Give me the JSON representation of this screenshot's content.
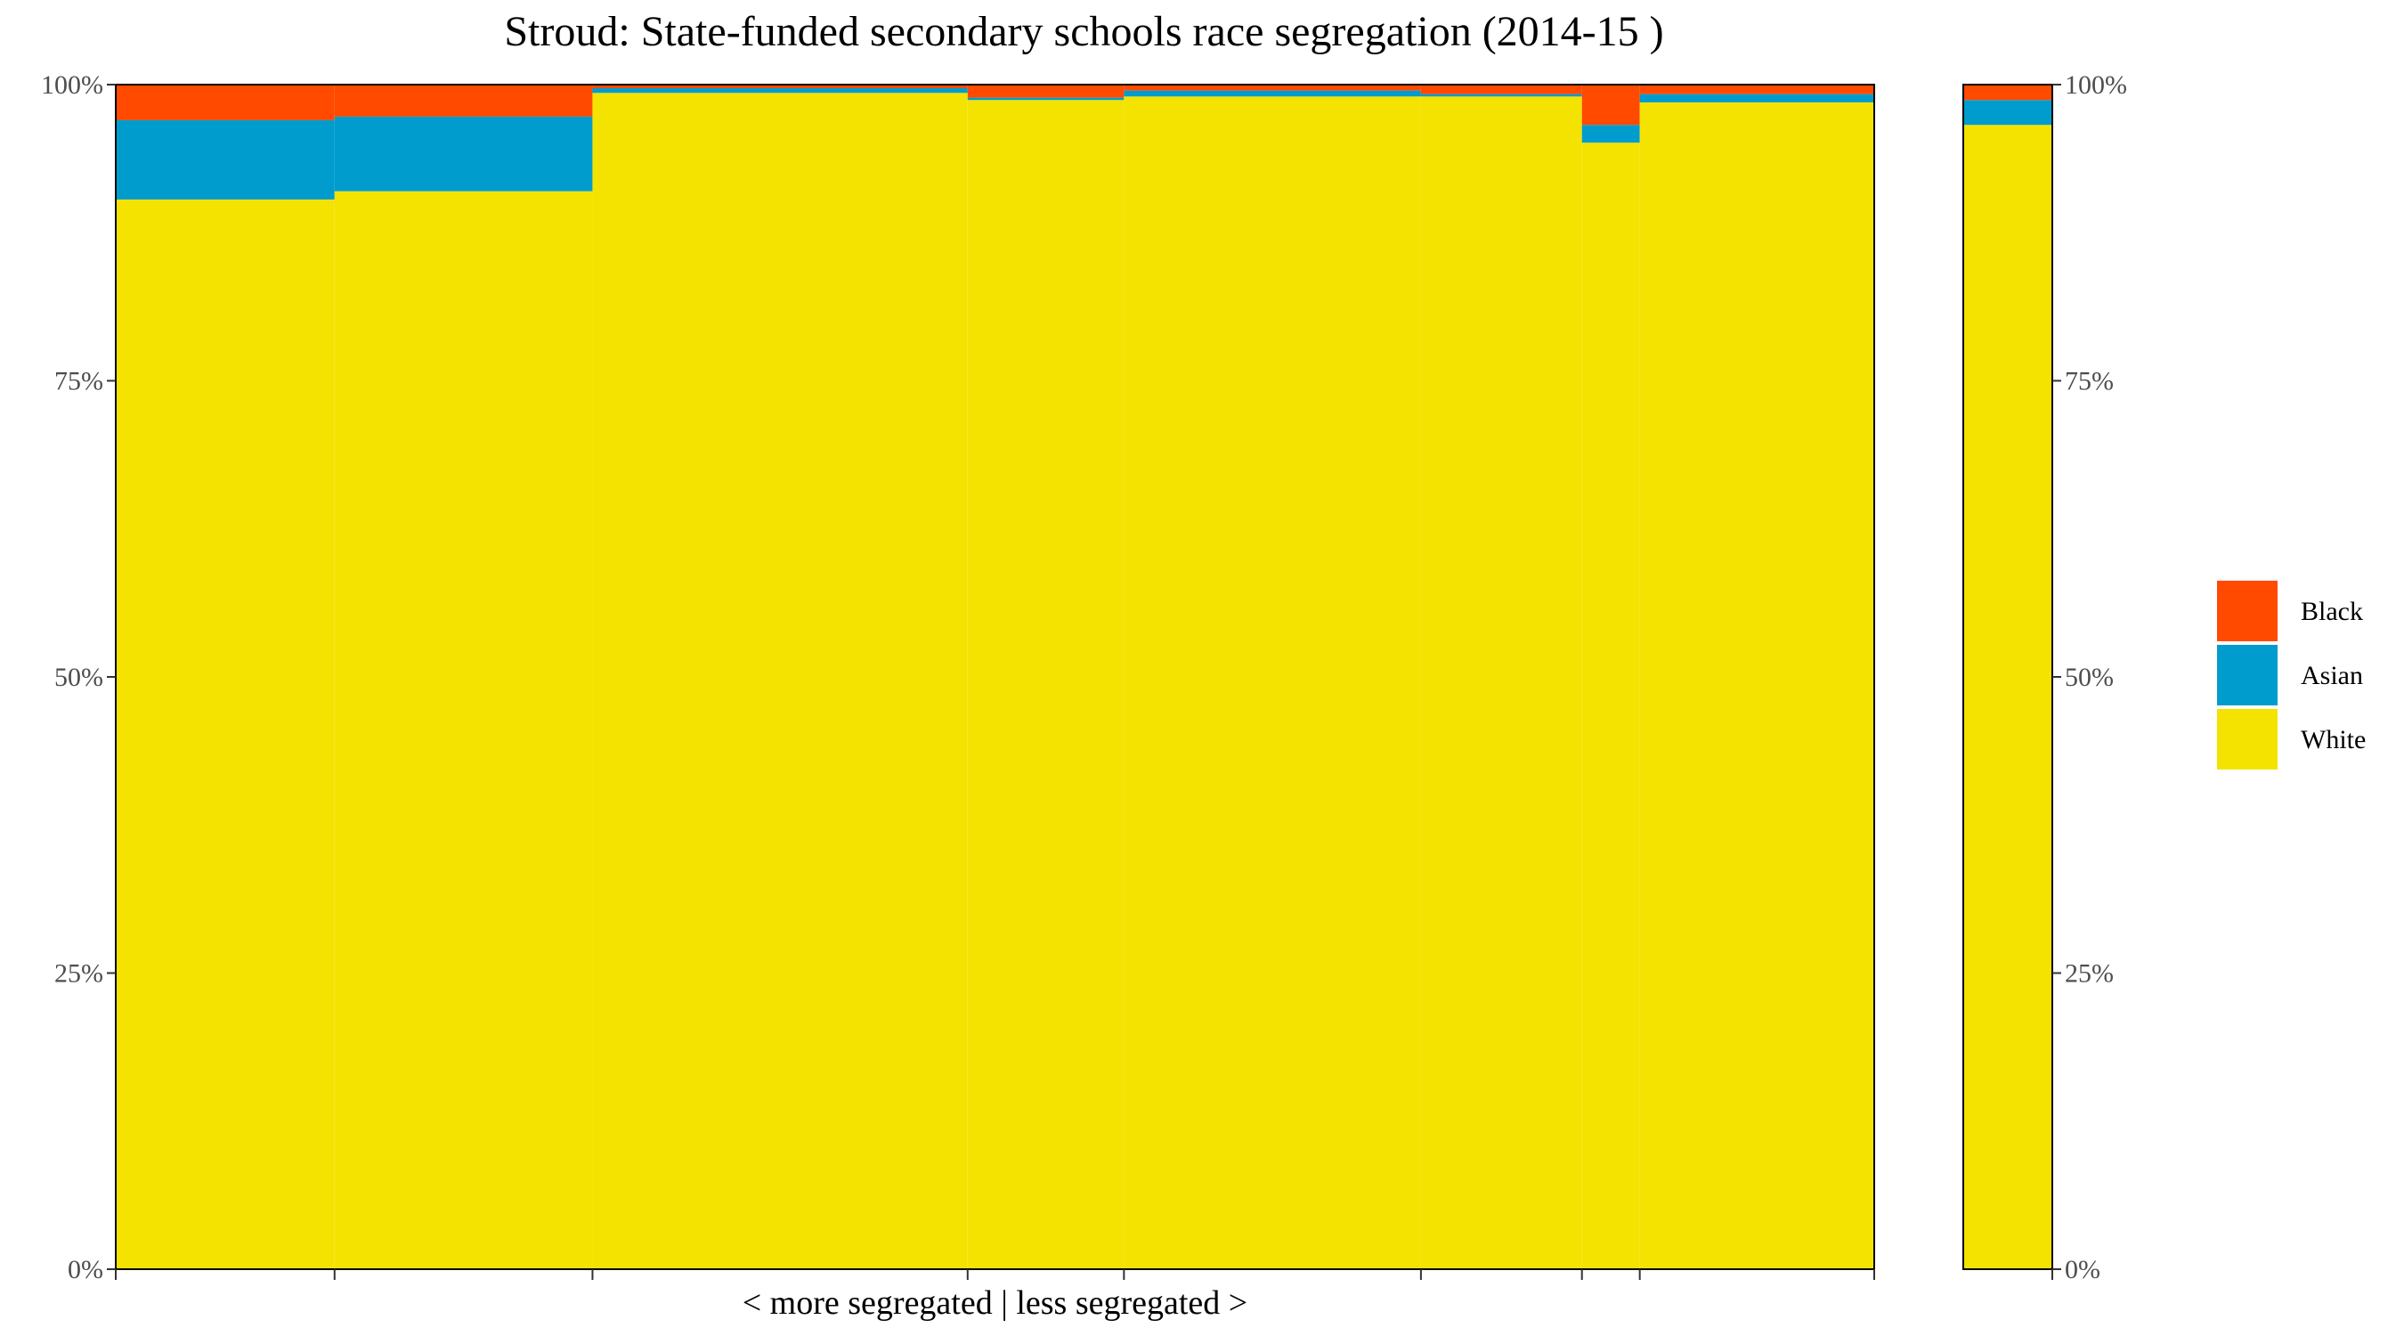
{
  "chart_data": {
    "type": "bar",
    "title": "Stroud: State-funded secondary schools race segregation (2014-15 )",
    "xlabel": "< more segregated | less segregated >",
    "ylabel": "",
    "ylim": [
      0,
      100
    ],
    "y_ticks": [
      "0%",
      "25%",
      "50%",
      "75%",
      "100%"
    ],
    "legend": {
      "placement": "right",
      "order": [
        "Black",
        "Asian",
        "White"
      ]
    },
    "grid": false,
    "series_colors": {
      "White": "#F4E300",
      "Asian": "#009CCE",
      "Black": "#FF4A00"
    },
    "schools": [
      {
        "width": 14,
        "White": 90.3,
        "Asian": 6.7,
        "Black": 3.0
      },
      {
        "width": 16.5,
        "White": 91.0,
        "Asian": 6.3,
        "Black": 2.7
      },
      {
        "width": 24,
        "White": 99.3,
        "Asian": 0.4,
        "Black": 0.3
      },
      {
        "width": 10,
        "White": 98.7,
        "Asian": 0.2,
        "Black": 1.1
      },
      {
        "width": 19,
        "White": 99.0,
        "Asian": 0.5,
        "Black": 0.5
      },
      {
        "width": 10.3,
        "White": 99.0,
        "Asian": 0.2,
        "Black": 0.8
      },
      {
        "width": 3.7,
        "White": 95.1,
        "Asian": 1.5,
        "Black": 3.4
      },
      {
        "width": 15,
        "White": 98.5,
        "Asian": 0.7,
        "Black": 0.8
      }
    ],
    "overall": {
      "White": 96.6,
      "Asian": 2.1,
      "Black": 1.3
    }
  }
}
